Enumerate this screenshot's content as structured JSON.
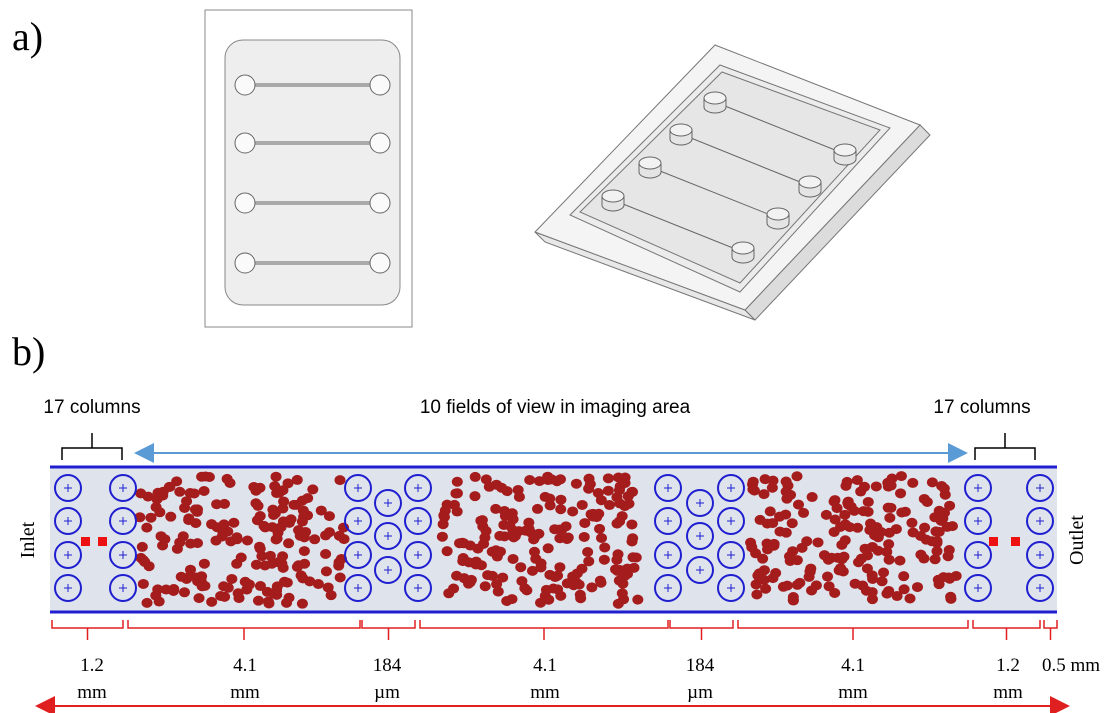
{
  "panel_a": {
    "label": "a)"
  },
  "panel_b": {
    "label": "b)",
    "top_labels": {
      "left": "17 columns",
      "center": "10 fields of view in imaging area",
      "right": "17 columns"
    },
    "side_labels": {
      "inlet": "Inlet",
      "outlet": "Outlet"
    },
    "dimensions": [
      {
        "value": "1.2",
        "unit": "mm"
      },
      {
        "value": "4.1",
        "unit": "mm"
      },
      {
        "value": "184",
        "unit": "µm"
      },
      {
        "value": "4.1",
        "unit": "mm"
      },
      {
        "value": "184",
        "unit": "µm"
      },
      {
        "value": "4.1",
        "unit": "mm"
      },
      {
        "value": "1.2",
        "unit": "mm"
      },
      {
        "value": "0.5 mm"
      }
    ]
  }
}
